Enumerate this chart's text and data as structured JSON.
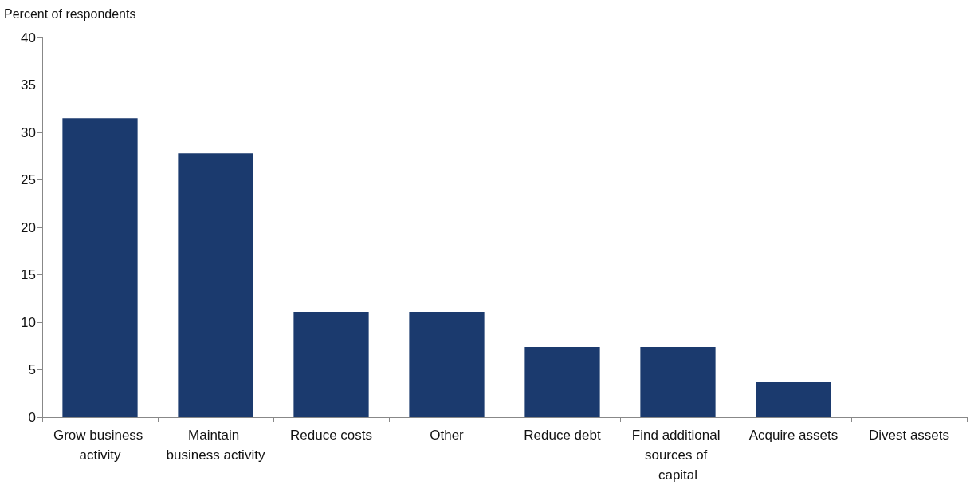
{
  "chart_data": {
    "type": "bar",
    "ylabel": "Percent of respondents",
    "categories": [
      "Grow business activity",
      "Maintain business activity",
      "Reduce costs",
      "Other",
      "Reduce debt",
      "Find additional sources of capital",
      "Acquire assets",
      "Divest assets"
    ],
    "values": [
      31.5,
      27.8,
      11.1,
      11.1,
      7.4,
      7.4,
      3.7,
      0
    ],
    "color": "#1b3a6e",
    "ylim": [
      0,
      40
    ],
    "yticks": [
      0,
      5,
      10,
      15,
      20,
      25,
      30,
      35,
      40
    ],
    "grid": false
  }
}
